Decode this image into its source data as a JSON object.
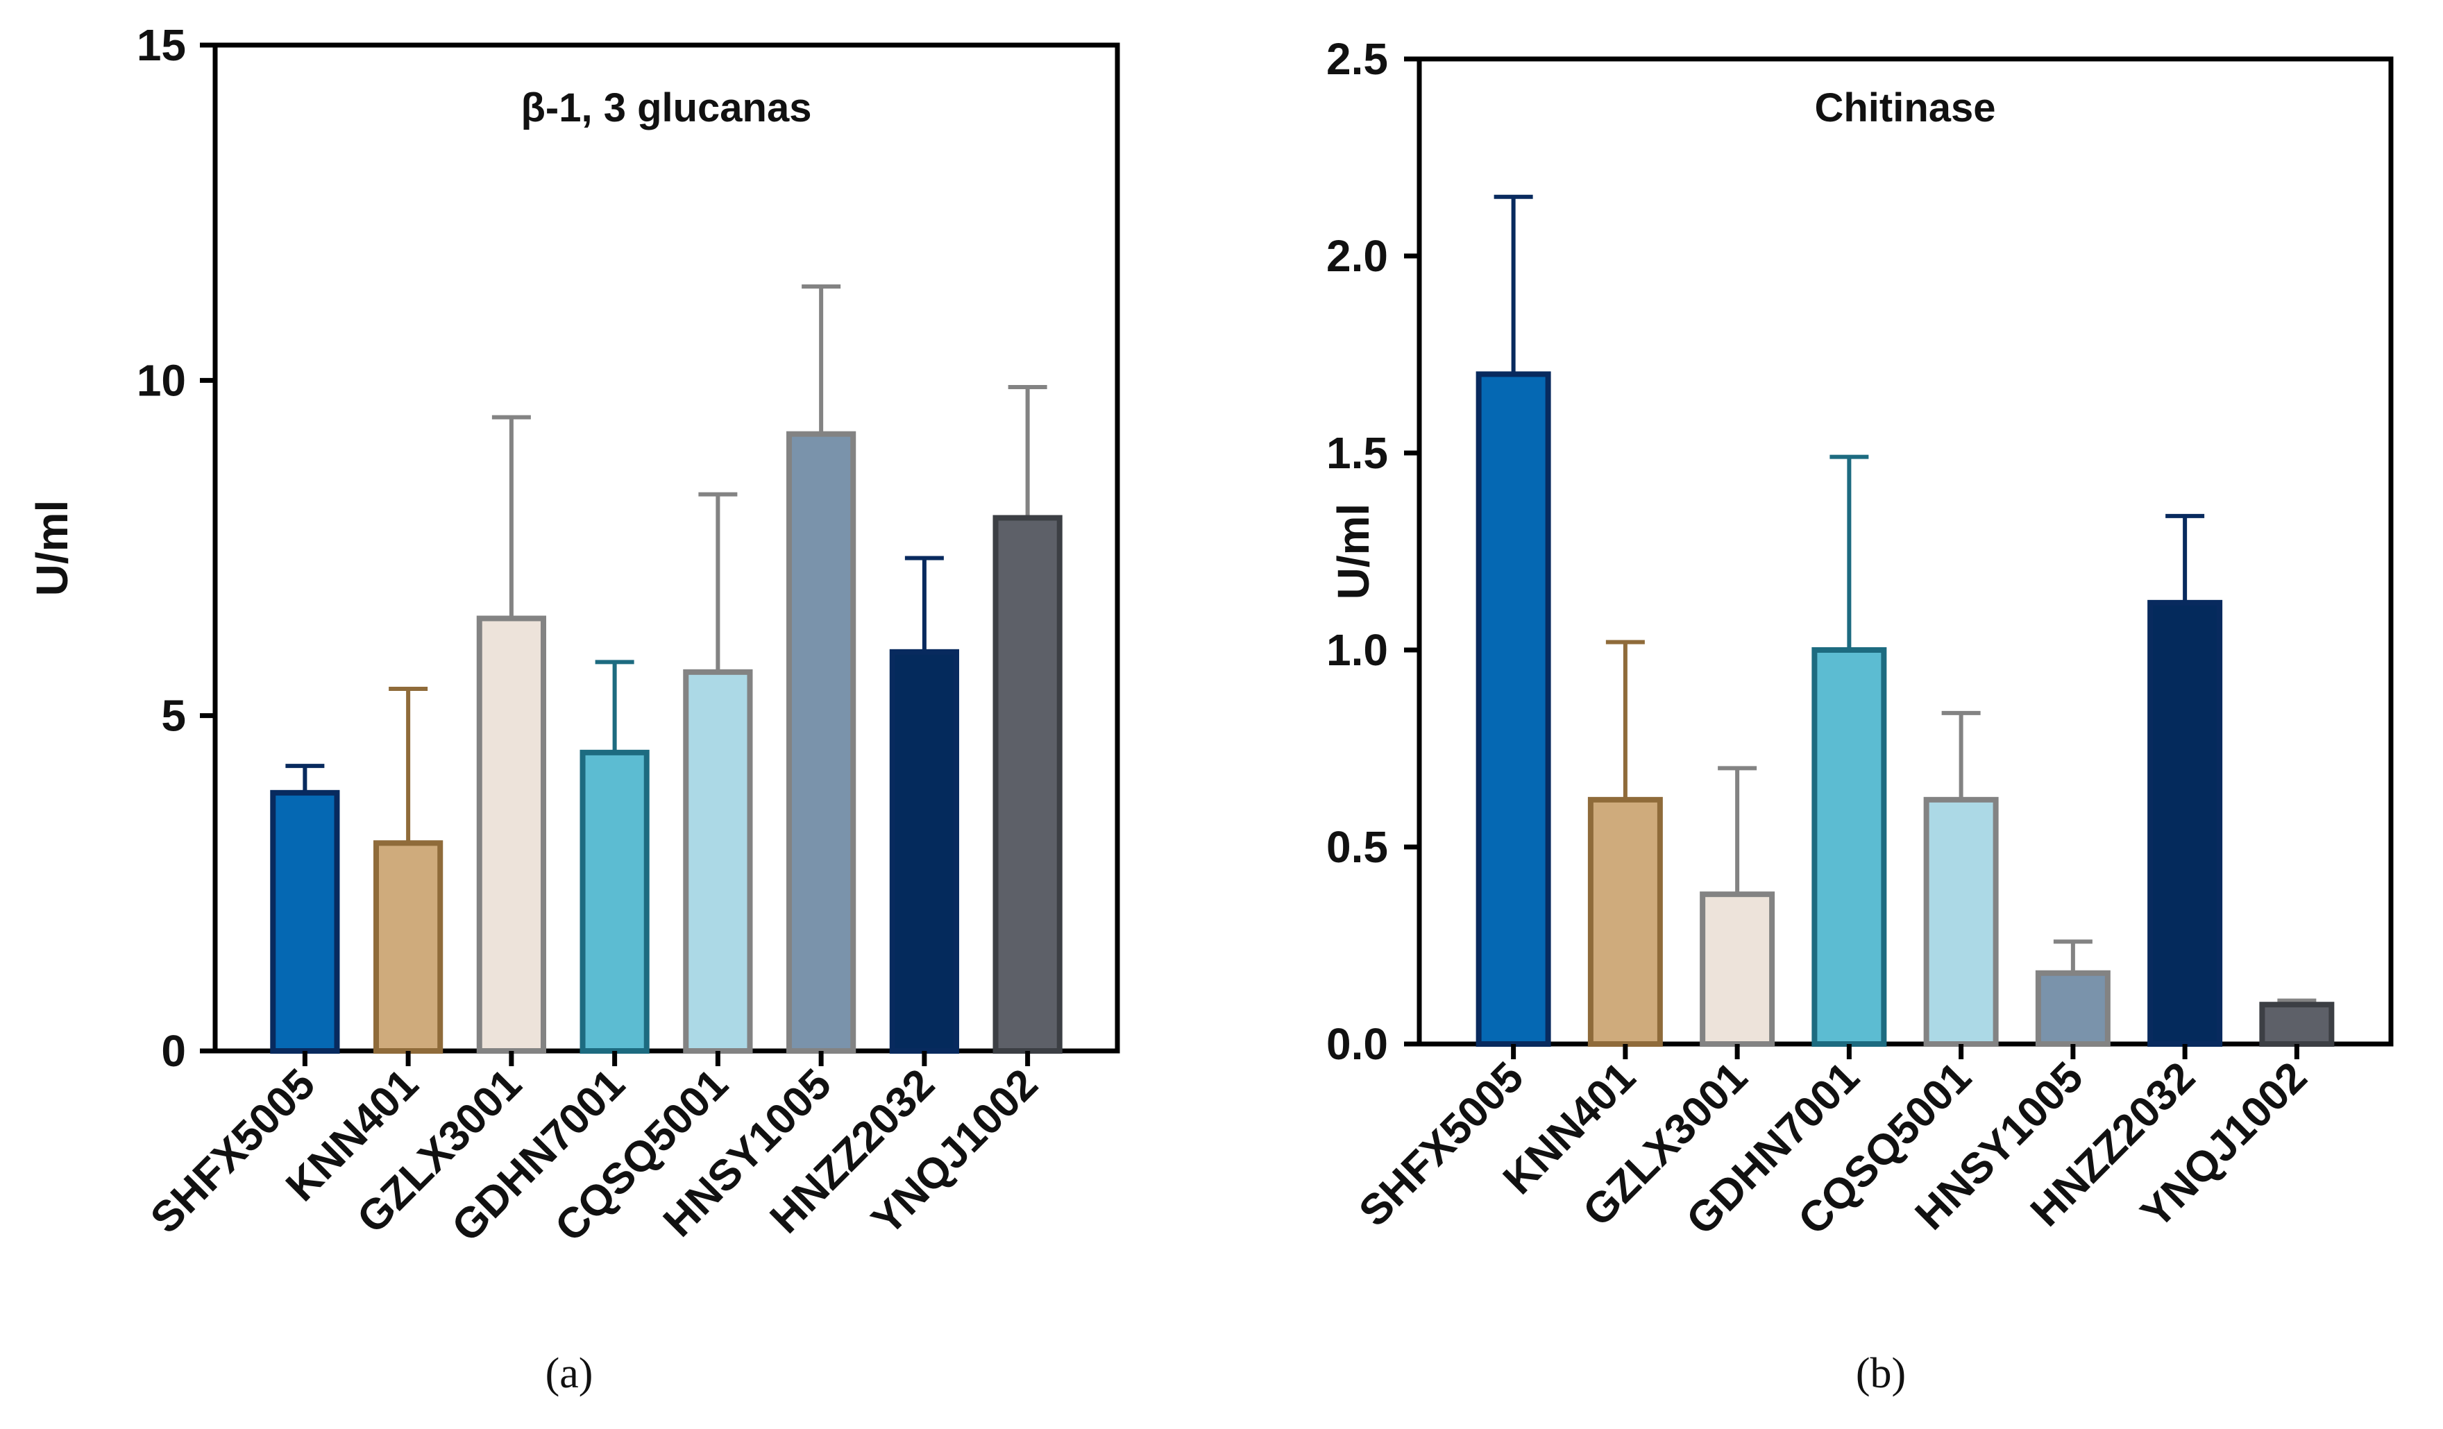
{
  "figure": {
    "panels": [
      {
        "id": "a",
        "label": "(a)"
      },
      {
        "id": "b",
        "label": "(b)"
      }
    ]
  },
  "chart_data": [
    {
      "type": "bar",
      "panel": "(a)",
      "title": "β-1, 3 glucanas",
      "ylabel": "U/ml",
      "xlabel": "",
      "ylim": [
        0,
        15
      ],
      "yticks": [
        0,
        5,
        10,
        15
      ],
      "ytick_labels": [
        "0",
        "5",
        "10",
        "15"
      ],
      "categories": [
        "SHFX5005",
        "KNN401",
        "GZLX3001",
        "GDHN7001",
        "CQSQ5001",
        "HNSY1005",
        "HNZZ2032",
        "YNQJ1002"
      ],
      "values": [
        3.85,
        3.1,
        6.45,
        4.45,
        5.65,
        9.2,
        5.95,
        7.95
      ],
      "errors": [
        0.4,
        2.3,
        3.0,
        1.35,
        2.65,
        2.2,
        1.4,
        1.95
      ],
      "fill_colors": [
        "#0568b3",
        "#cfab7c",
        "#ede3da",
        "#5cbcd2",
        "#acd9e6",
        "#7a93ab",
        "#042a5c",
        "#5d6068"
      ],
      "edge_colors": [
        "#082a5e",
        "#8f6b3a",
        "#838383",
        "#1d6b80",
        "#838383",
        "#838383",
        "#082a5e",
        "#3c3f44"
      ],
      "error_colors": [
        "#082a5e",
        "#8f6b3a",
        "#838383",
        "#1d6b80",
        "#838383",
        "#838383",
        "#082a5e",
        "#838383"
      ]
    },
    {
      "type": "bar",
      "panel": "(b)",
      "title": "Chitinase",
      "ylabel": "U/ml",
      "xlabel": "",
      "ylim": [
        0,
        2.5
      ],
      "yticks": [
        0,
        0.5,
        1.0,
        1.5,
        2.0,
        2.5
      ],
      "ytick_labels": [
        "0.0",
        "0.5",
        "1.0",
        "1.5",
        "2.0",
        "2.5"
      ],
      "categories": [
        "SHFX5005",
        "KNN401",
        "GZLX3001",
        "GDHN7001",
        "CQSQ5001",
        "HNSY1005",
        "HNZZ2032",
        "YNQJ1002"
      ],
      "values": [
        1.7,
        0.62,
        0.38,
        1.0,
        0.62,
        0.18,
        1.12,
        0.1
      ],
      "errors": [
        0.45,
        0.4,
        0.32,
        0.49,
        0.22,
        0.08,
        0.22,
        0.01
      ],
      "fill_colors": [
        "#0568b3",
        "#cfab7c",
        "#ede3da",
        "#5cbcd2",
        "#acd9e6",
        "#7a93ab",
        "#042a5c",
        "#5d6068"
      ],
      "edge_colors": [
        "#082a5e",
        "#8f6b3a",
        "#838383",
        "#1d6b80",
        "#838383",
        "#838383",
        "#082a5e",
        "#3c3f44"
      ],
      "error_colors": [
        "#082a5e",
        "#8f6b3a",
        "#838383",
        "#1d6b80",
        "#838383",
        "#838383",
        "#082a5e",
        "#838383"
      ]
    }
  ]
}
